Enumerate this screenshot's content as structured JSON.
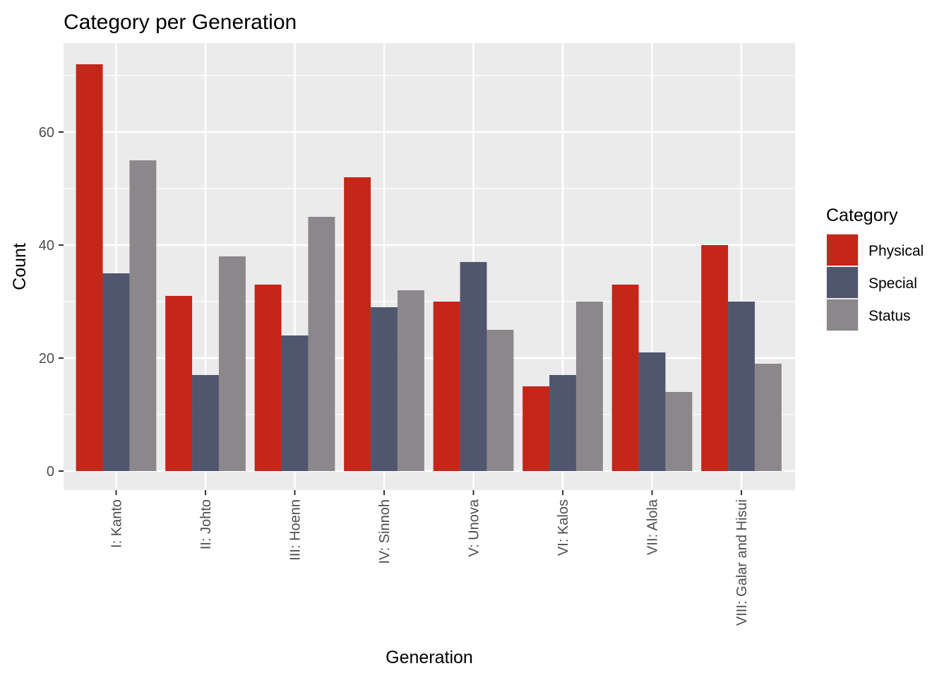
{
  "chart_data": {
    "type": "bar",
    "title": "Category per Generation",
    "xlabel": "Generation",
    "ylabel": "Count",
    "categories": [
      "I: Kanto",
      "II: Johto",
      "III: Hoenn",
      "IV: Sinnoh",
      "V: Unova",
      "VI: Kalos",
      "VII: Alola",
      "VIII: Galar and Hisui"
    ],
    "series": [
      {
        "name": "Physical",
        "color": "#c4261a",
        "values": [
          72,
          31,
          33,
          52,
          30,
          15,
          33,
          40
        ]
      },
      {
        "name": "Special",
        "color": "#50566e",
        "values": [
          35,
          17,
          24,
          29,
          37,
          17,
          21,
          30
        ]
      },
      {
        "name": "Status",
        "color": "#8b878b",
        "values": [
          55,
          38,
          45,
          32,
          25,
          30,
          14,
          19
        ]
      }
    ],
    "ylim": [
      0,
      75
    ],
    "yticks": [
      0,
      20,
      40,
      60
    ],
    "grid": true,
    "panel_background": "#ebebeb",
    "legend": {
      "title": "Category",
      "position": "right"
    }
  }
}
